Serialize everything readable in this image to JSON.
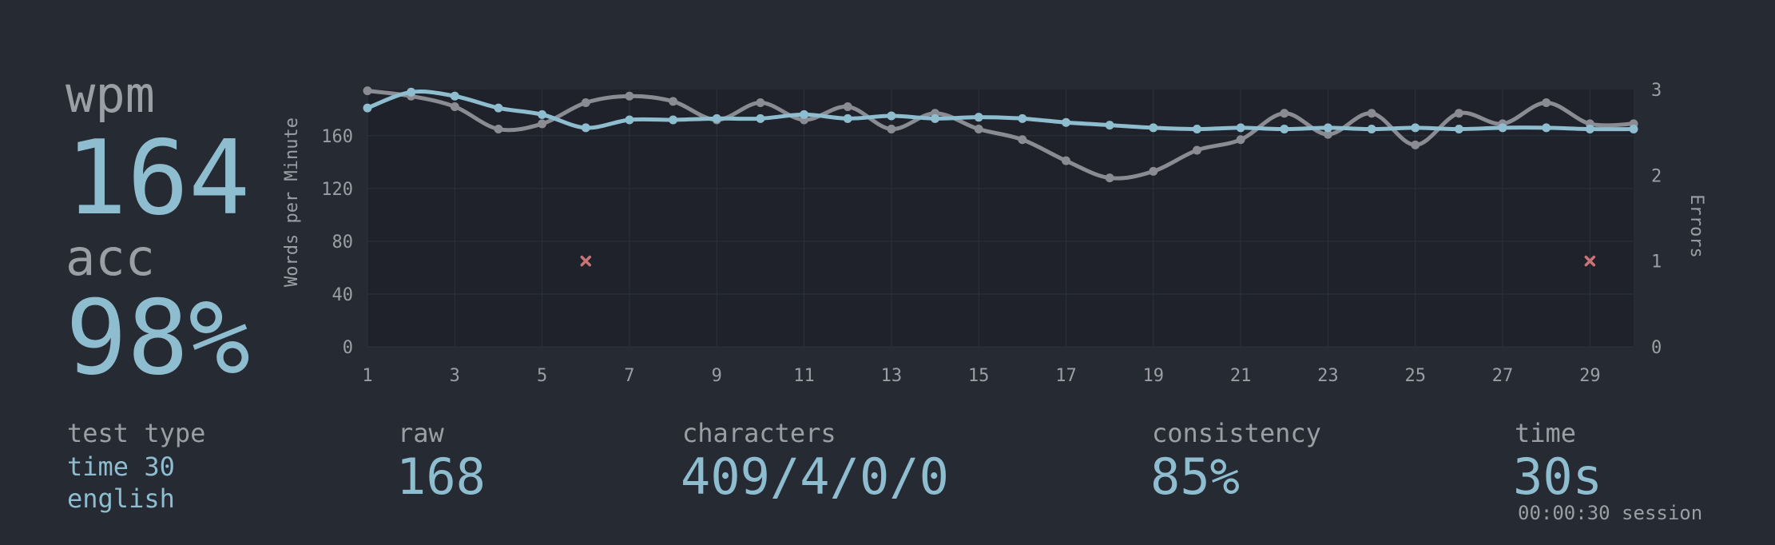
{
  "stats": {
    "wpm_label": "wpm",
    "wpm_value": "164",
    "acc_label": "acc",
    "acc_value": "98%",
    "test_type_label": "test type",
    "test_type_mode": "time 30",
    "test_type_language": "english",
    "raw_label": "raw",
    "raw_value": "168",
    "characters_label": "characters",
    "characters_value": "409/4/0/0",
    "consistency_label": "consistency",
    "consistency_value": "85%",
    "time_label": "time",
    "time_value": "30s",
    "session_text": "00:00:30 session"
  },
  "colors": {
    "background": "#262a33",
    "plot_background": "#1f222a",
    "accent": "#8fbdd0",
    "raw_line": "#8a8b93",
    "error_mark": "#c97477",
    "label": "#9c9ea5"
  },
  "chart_data": {
    "type": "line",
    "ylabel": "Words per Minute",
    "y2label": "Errors",
    "x": [
      1,
      2,
      3,
      4,
      5,
      6,
      7,
      8,
      9,
      10,
      11,
      12,
      13,
      14,
      15,
      16,
      17,
      18,
      19,
      20,
      21,
      22,
      23,
      24,
      25,
      26,
      27,
      28,
      29,
      30
    ],
    "xticks": [
      "1",
      "3",
      "5",
      "7",
      "9",
      "11",
      "13",
      "15",
      "17",
      "19",
      "21",
      "23",
      "25",
      "27",
      "29"
    ],
    "ylim": [
      0,
      195
    ],
    "yticks": [
      0,
      40,
      80,
      120,
      160
    ],
    "y2lim": [
      0,
      3
    ],
    "y2ticks": [
      0,
      1,
      2,
      3
    ],
    "grid": true,
    "series": [
      {
        "role": "raw",
        "values": [
          194,
          190,
          182,
          165,
          169,
          185,
          190,
          186,
          172,
          185,
          172,
          182,
          165,
          177,
          165,
          157,
          141,
          128,
          133,
          149,
          157,
          177,
          161,
          177,
          153,
          177,
          169,
          185,
          169,
          169
        ]
      },
      {
        "role": "wpm",
        "values": [
          181,
          193,
          190,
          181,
          176,
          166,
          172,
          172,
          173,
          173,
          176,
          173,
          175,
          173,
          174,
          173,
          170,
          168,
          166,
          165,
          166,
          165,
          166,
          165,
          166,
          165,
          166,
          166,
          165,
          165
        ]
      }
    ],
    "errors": [
      {
        "x": 6,
        "count": 1
      },
      {
        "x": 29,
        "count": 1
      }
    ]
  }
}
